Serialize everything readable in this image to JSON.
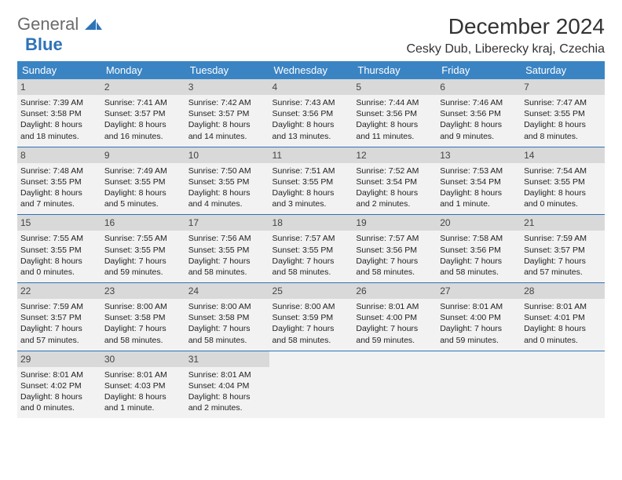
{
  "logo": {
    "text1": "General",
    "text2": "Blue",
    "icon_color": "#2e73b8"
  },
  "title": "December 2024",
  "location": "Cesky Dub, Liberecky kraj, Czechia",
  "colors": {
    "header_bg": "#3a84c4",
    "header_text": "#ffffff",
    "cell_bg": "#f2f2f2",
    "daynum_bg": "#d9d9d9",
    "border": "#2e73b8",
    "logo_gray": "#6b6b6b",
    "logo_blue": "#2e73b8"
  },
  "weekdays": [
    "Sunday",
    "Monday",
    "Tuesday",
    "Wednesday",
    "Thursday",
    "Friday",
    "Saturday"
  ],
  "weeks": [
    [
      {
        "d": "1",
        "sr": "7:39 AM",
        "ss": "3:58 PM",
        "dl": "8 hours and 18 minutes."
      },
      {
        "d": "2",
        "sr": "7:41 AM",
        "ss": "3:57 PM",
        "dl": "8 hours and 16 minutes."
      },
      {
        "d": "3",
        "sr": "7:42 AM",
        "ss": "3:57 PM",
        "dl": "8 hours and 14 minutes."
      },
      {
        "d": "4",
        "sr": "7:43 AM",
        "ss": "3:56 PM",
        "dl": "8 hours and 13 minutes."
      },
      {
        "d": "5",
        "sr": "7:44 AM",
        "ss": "3:56 PM",
        "dl": "8 hours and 11 minutes."
      },
      {
        "d": "6",
        "sr": "7:46 AM",
        "ss": "3:56 PM",
        "dl": "8 hours and 9 minutes."
      },
      {
        "d": "7",
        "sr": "7:47 AM",
        "ss": "3:55 PM",
        "dl": "8 hours and 8 minutes."
      }
    ],
    [
      {
        "d": "8",
        "sr": "7:48 AM",
        "ss": "3:55 PM",
        "dl": "8 hours and 7 minutes."
      },
      {
        "d": "9",
        "sr": "7:49 AM",
        "ss": "3:55 PM",
        "dl": "8 hours and 5 minutes."
      },
      {
        "d": "10",
        "sr": "7:50 AM",
        "ss": "3:55 PM",
        "dl": "8 hours and 4 minutes."
      },
      {
        "d": "11",
        "sr": "7:51 AM",
        "ss": "3:55 PM",
        "dl": "8 hours and 3 minutes."
      },
      {
        "d": "12",
        "sr": "7:52 AM",
        "ss": "3:54 PM",
        "dl": "8 hours and 2 minutes."
      },
      {
        "d": "13",
        "sr": "7:53 AM",
        "ss": "3:54 PM",
        "dl": "8 hours and 1 minute."
      },
      {
        "d": "14",
        "sr": "7:54 AM",
        "ss": "3:55 PM",
        "dl": "8 hours and 0 minutes."
      }
    ],
    [
      {
        "d": "15",
        "sr": "7:55 AM",
        "ss": "3:55 PM",
        "dl": "8 hours and 0 minutes."
      },
      {
        "d": "16",
        "sr": "7:55 AM",
        "ss": "3:55 PM",
        "dl": "7 hours and 59 minutes."
      },
      {
        "d": "17",
        "sr": "7:56 AM",
        "ss": "3:55 PM",
        "dl": "7 hours and 58 minutes."
      },
      {
        "d": "18",
        "sr": "7:57 AM",
        "ss": "3:55 PM",
        "dl": "7 hours and 58 minutes."
      },
      {
        "d": "19",
        "sr": "7:57 AM",
        "ss": "3:56 PM",
        "dl": "7 hours and 58 minutes."
      },
      {
        "d": "20",
        "sr": "7:58 AM",
        "ss": "3:56 PM",
        "dl": "7 hours and 58 minutes."
      },
      {
        "d": "21",
        "sr": "7:59 AM",
        "ss": "3:57 PM",
        "dl": "7 hours and 57 minutes."
      }
    ],
    [
      {
        "d": "22",
        "sr": "7:59 AM",
        "ss": "3:57 PM",
        "dl": "7 hours and 57 minutes."
      },
      {
        "d": "23",
        "sr": "8:00 AM",
        "ss": "3:58 PM",
        "dl": "7 hours and 58 minutes."
      },
      {
        "d": "24",
        "sr": "8:00 AM",
        "ss": "3:58 PM",
        "dl": "7 hours and 58 minutes."
      },
      {
        "d": "25",
        "sr": "8:00 AM",
        "ss": "3:59 PM",
        "dl": "7 hours and 58 minutes."
      },
      {
        "d": "26",
        "sr": "8:01 AM",
        "ss": "4:00 PM",
        "dl": "7 hours and 59 minutes."
      },
      {
        "d": "27",
        "sr": "8:01 AM",
        "ss": "4:00 PM",
        "dl": "7 hours and 59 minutes."
      },
      {
        "d": "28",
        "sr": "8:01 AM",
        "ss": "4:01 PM",
        "dl": "8 hours and 0 minutes."
      }
    ],
    [
      {
        "d": "29",
        "sr": "8:01 AM",
        "ss": "4:02 PM",
        "dl": "8 hours and 0 minutes."
      },
      {
        "d": "30",
        "sr": "8:01 AM",
        "ss": "4:03 PM",
        "dl": "8 hours and 1 minute."
      },
      {
        "d": "31",
        "sr": "8:01 AM",
        "ss": "4:04 PM",
        "dl": "8 hours and 2 minutes."
      },
      null,
      null,
      null,
      null
    ]
  ],
  "labels": {
    "sunrise": "Sunrise: ",
    "sunset": "Sunset: ",
    "daylight": "Daylight: "
  }
}
